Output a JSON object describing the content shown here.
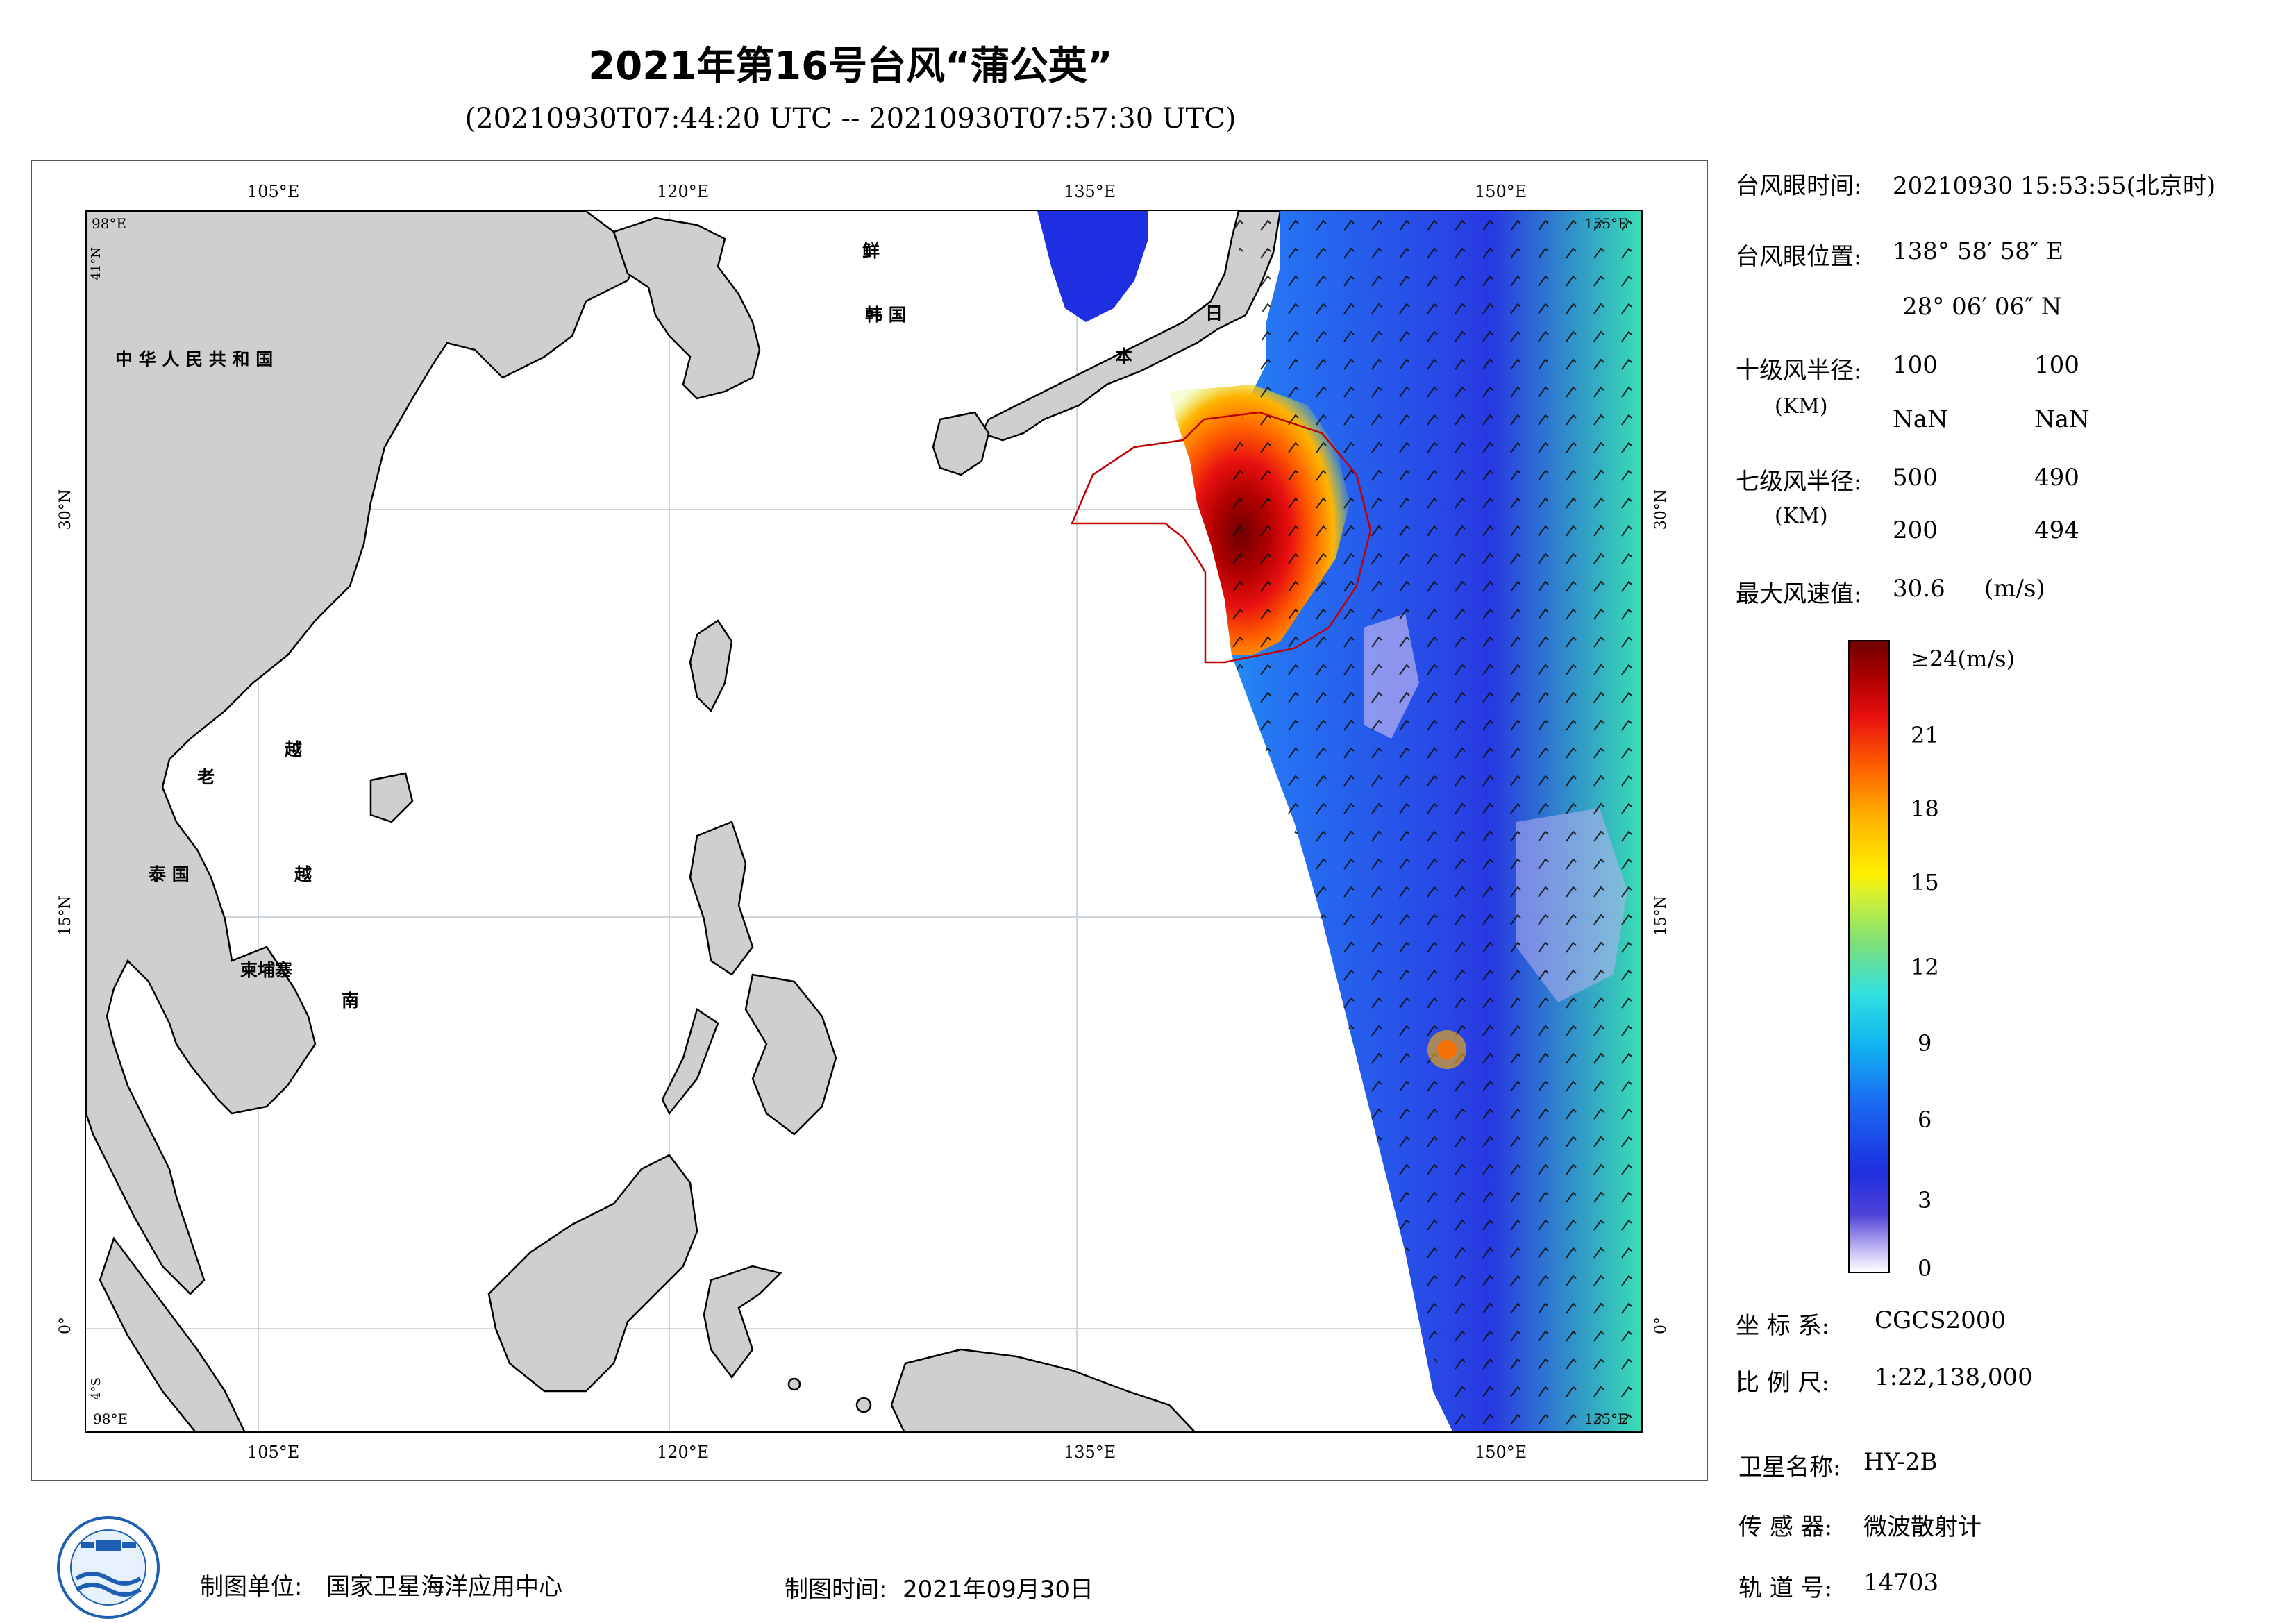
{
  "header": {
    "title": "2021年第16号台风“蒲公英”",
    "time_range": "(20210930T07:44:20 UTC -- 20210930T07:57:30 UTC)"
  },
  "map": {
    "lon_ticks_top": [
      "105°E",
      "120°E",
      "135°E",
      "150°E"
    ],
    "lon_ticks_bottom": [
      "105°E",
      "120°E",
      "135°E",
      "150°E"
    ],
    "lat_ticks_left": [
      "30°N",
      "15°N",
      "0°"
    ],
    "lat_ticks_right": [
      "30°N",
      "15°N",
      "0°"
    ],
    "corner_labels": {
      "top_left_lon": "98°E",
      "top_left_lat": "41°N",
      "top_right_lon": "155°E",
      "bottom_left_lat": "4°S",
      "bottom_left_lon": "98°E",
      "bottom_right_lon": "155°E"
    },
    "country_labels": {
      "china": "中 华 人 民 共 和 国",
      "korea_dprk": "鲜",
      "korea_rok": "韩 国",
      "japan_1": "日",
      "japan_2": "本",
      "laos": "老",
      "vietnam_1": "越",
      "vietnam_2": "越",
      "vietnam_3": "南",
      "thailand": "泰 国",
      "cambodia": "柬埔寨"
    }
  },
  "info": {
    "eye_time_label": "台风眼时间:",
    "eye_time_value": "20210930 15:53:55(北京时)",
    "eye_pos_label": "台风眼位置:",
    "eye_lon": "138° 58′ 58″ E",
    "eye_lat": "28° 06′ 06″ N",
    "r10_label": "十级风半径:",
    "r10_unit": "(KM)",
    "r10_row1": [
      "100",
      "100"
    ],
    "r10_row2": [
      "NaN",
      "NaN"
    ],
    "r7_label": "七级风半径:",
    "r7_unit": "(KM)",
    "r7_row1": [
      "500",
      "490"
    ],
    "r7_row2": [
      "200",
      "494"
    ],
    "max_wind_label": "最大风速值:",
    "max_wind_value": "30.6",
    "max_wind_unit": "(m/s)"
  },
  "colorbar": {
    "labels": [
      "≥24(m/s)",
      "21",
      "18",
      "15",
      "12",
      "9",
      "6",
      "3",
      "0"
    ],
    "colors": [
      "#700000",
      "#e81010",
      "#ff6000",
      "#fff000",
      "#7be07a",
      "#2fe0e0",
      "#1a6cf2",
      "#5043d8",
      "#ffffff"
    ]
  },
  "meta": {
    "coord_label": "坐 标 系:",
    "coord_value": "CGCS2000",
    "scale_label": "比 例 尺:",
    "scale_value": "1:22,138,000",
    "satellite_label": "卫星名称:",
    "satellite_value": "HY-2B",
    "sensor_label": "传 感 器:",
    "sensor_value": "微波散射计",
    "orbit_label": "轨 道 号:",
    "orbit_value": "14703"
  },
  "footer": {
    "unit_label": "制图单位:",
    "unit_value": "国家卫星海洋应用中心",
    "time_label": "制图时间:",
    "time_value": "2021年09月30日"
  }
}
